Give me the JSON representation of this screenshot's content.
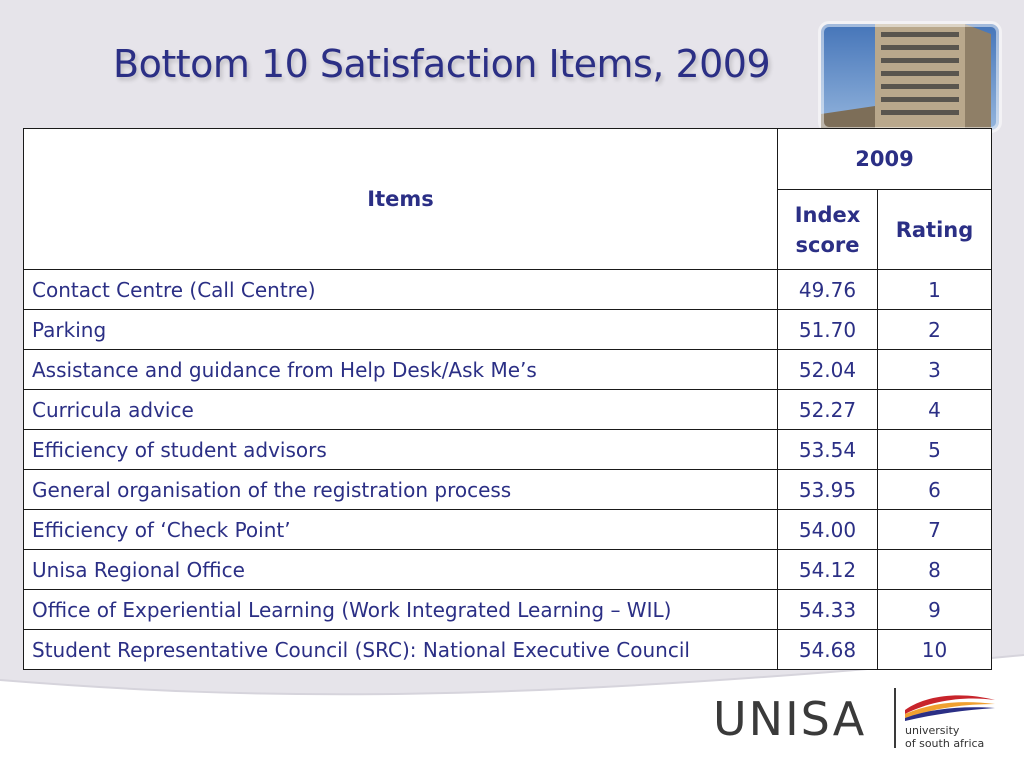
{
  "slide": {
    "title": "Bottom 10 Satisfaction Items, 2009"
  },
  "table": {
    "header": {
      "items_label": "Items",
      "year_label": "2009",
      "score_label_line1": "Index",
      "score_label_line2": "score",
      "rating_label": "Rating"
    },
    "rows": [
      {
        "item": "Contact Centre (Call Centre)",
        "score": "49.76",
        "rating": "1"
      },
      {
        "item": "Parking",
        "score": "51.70",
        "rating": "2"
      },
      {
        "item": "Assistance and guidance from Help Desk/Ask Me’s",
        "score": "52.04",
        "rating": "3"
      },
      {
        "item": "Curricula advice",
        "score": "52.27",
        "rating": "4"
      },
      {
        "item": "Efficiency of student advisors",
        "score": "53.54",
        "rating": "5"
      },
      {
        "item": "General organisation of the registration process",
        "score": "53.95",
        "rating": "6"
      },
      {
        "item": "Efficiency of ‘Check Point’",
        "score": "54.00",
        "rating": "7"
      },
      {
        "item": "Unisa Regional Office",
        "score": "54.12",
        "rating": "8"
      },
      {
        "item": "Office of Experiential Learning (Work Integrated Learning – WIL)",
        "score": "54.33",
        "rating": "9"
      },
      {
        "item": "Student Representative Council (SRC): National Executive Council",
        "score": "54.68",
        "rating": "10"
      }
    ]
  },
  "logo": {
    "wordmark": "UNISA",
    "line1": "university",
    "line2": "of south africa"
  },
  "colors": {
    "text_navy": "#2b2f85",
    "background": "#e6e4ea",
    "logo_red": "#c8242b",
    "logo_orange": "#f0a030",
    "logo_navy": "#2b2f85"
  }
}
